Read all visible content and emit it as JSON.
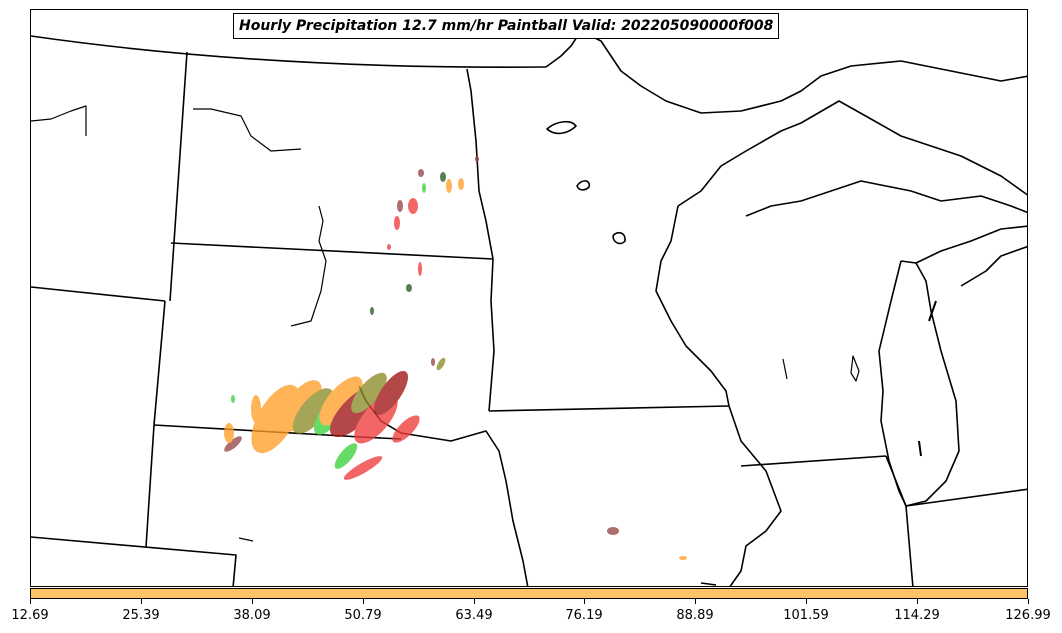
{
  "title": "Hourly Precipitation 12.7 mm/hr Paintball Valid: 202205090000f008",
  "colorbar": {
    "color": "#ffc266",
    "ticks": [
      "12.69",
      "25.39",
      "38.09",
      "50.79",
      "63.49",
      "76.19",
      "88.89",
      "101.59",
      "114.29",
      "126.99"
    ]
  },
  "colors": {
    "paint_red": "#f03c3c",
    "paint_darkred": "#a01414",
    "paint_orange": "#ff9f2a",
    "paint_green": "#3cd23c",
    "paint_olive": "#8c8c28",
    "paint_brown": "#964646",
    "paint_darkgreen": "#285a28"
  }
}
